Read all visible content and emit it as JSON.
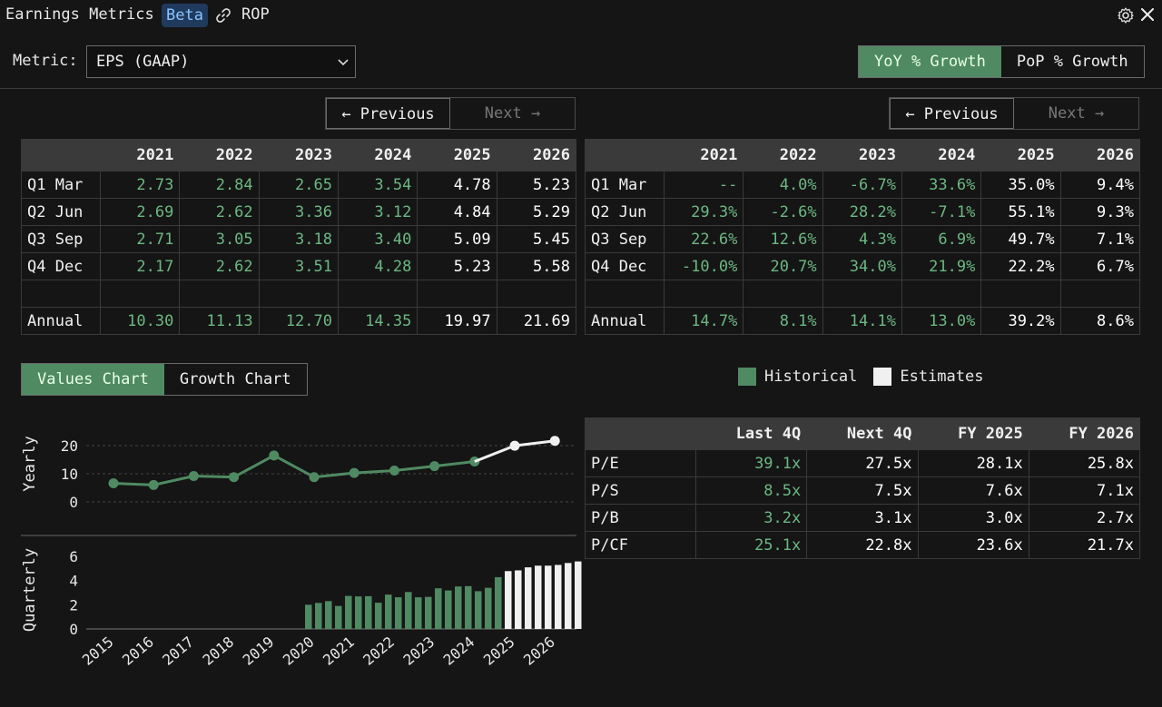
{
  "header": {
    "title": "Earnings Metrics",
    "badge": "Beta",
    "ticker": "ROP"
  },
  "metric": {
    "label": "Metric:",
    "selected": "EPS (GAAP)"
  },
  "growth_toggle": {
    "options": [
      "YoY % Growth",
      "PoP % Growth"
    ],
    "active": "YoY % Growth"
  },
  "pager": {
    "prev": "← Previous",
    "next": "Next →"
  },
  "eps_table": {
    "corner": "",
    "years": [
      "2021",
      "2022",
      "2023",
      "2024",
      "2025",
      "2026"
    ],
    "rows": [
      {
        "label": "Q1 Mar",
        "values": [
          "2.73",
          "2.84",
          "2.65",
          "3.54",
          "4.78",
          "5.23"
        ]
      },
      {
        "label": "Q2 Jun",
        "values": [
          "2.69",
          "2.62",
          "3.36",
          "3.12",
          "4.84",
          "5.29"
        ]
      },
      {
        "label": "Q3 Sep",
        "values": [
          "2.71",
          "3.05",
          "3.18",
          "3.40",
          "5.09",
          "5.45"
        ]
      },
      {
        "label": "Q4 Dec",
        "values": [
          "2.17",
          "2.62",
          "3.51",
          "4.28",
          "5.23",
          "5.58"
        ]
      },
      {
        "label": "",
        "values": [
          "",
          "",
          "",
          "",
          "",
          ""
        ]
      },
      {
        "label": "Annual",
        "values": [
          "10.30",
          "11.13",
          "12.70",
          "14.35",
          "19.97",
          "21.69"
        ]
      }
    ]
  },
  "growth_table": {
    "years": [
      "2021",
      "2022",
      "2023",
      "2024",
      "2025",
      "2026"
    ],
    "rows": [
      {
        "label": "Q1 Mar",
        "values": [
          "--",
          "4.0%",
          "-6.7%",
          "33.6%",
          "35.0%",
          "9.4%"
        ]
      },
      {
        "label": "Q2 Jun",
        "values": [
          "29.3%",
          "-2.6%",
          "28.2%",
          "-7.1%",
          "55.1%",
          "9.3%"
        ]
      },
      {
        "label": "Q3 Sep",
        "values": [
          "22.6%",
          "12.6%",
          "4.3%",
          "6.9%",
          "49.7%",
          "7.1%"
        ]
      },
      {
        "label": "Q4 Dec",
        "values": [
          "-10.0%",
          "20.7%",
          "34.0%",
          "21.9%",
          "22.2%",
          "6.7%"
        ]
      },
      {
        "label": "",
        "values": [
          "",
          "",
          "",
          "",
          "",
          ""
        ]
      },
      {
        "label": "Annual",
        "values": [
          "14.7%",
          "8.1%",
          "14.1%",
          "13.0%",
          "39.2%",
          "8.6%"
        ]
      }
    ]
  },
  "historical_columns": 4,
  "chart_toggle": {
    "options": [
      "Values Chart",
      "Growth Chart"
    ],
    "active": "Values Chart"
  },
  "legend": {
    "historical": "Historical",
    "estimates": "Estimates"
  },
  "valuation_table": {
    "headers": [
      "",
      "Last 4Q",
      "Next 4Q",
      "FY 2025",
      "FY 2026"
    ],
    "rows": [
      {
        "label": "P/E",
        "values": [
          "39.1x",
          "27.5x",
          "28.1x",
          "25.8x"
        ]
      },
      {
        "label": "P/S",
        "values": [
          "8.5x",
          "7.5x",
          "7.6x",
          "7.1x"
        ]
      },
      {
        "label": "P/B",
        "values": [
          "3.2x",
          "3.1x",
          "3.0x",
          "2.7x"
        ]
      },
      {
        "label": "P/CF",
        "values": [
          "25.1x",
          "22.8x",
          "23.6x",
          "21.7x"
        ]
      }
    ]
  },
  "colors": {
    "historical": "#4f8a62",
    "historical_text": "#6bb882",
    "estimates": "#f0f0f0",
    "background": "#151515",
    "active_toggle": "#4f8a62"
  },
  "chart_data": [
    {
      "type": "line",
      "ylabel": "Yearly",
      "x": [
        "2015",
        "2016",
        "2017",
        "2018",
        "2019",
        "2020",
        "2021",
        "2022",
        "2023",
        "2024",
        "2025",
        "2026"
      ],
      "series": [
        {
          "name": "Historical",
          "values": [
            6.6,
            6.0,
            9.2,
            8.8,
            16.5,
            8.8,
            10.3,
            11.13,
            12.7,
            14.35,
            null,
            null
          ]
        },
        {
          "name": "Estimates",
          "values": [
            null,
            null,
            null,
            null,
            null,
            null,
            null,
            null,
            null,
            14.35,
            19.97,
            21.69
          ]
        }
      ],
      "yticks": [
        "20",
        "10",
        "0"
      ],
      "ylim": [
        0,
        25
      ],
      "grid": "dashed"
    },
    {
      "type": "bar",
      "ylabel": "Quarterly",
      "x_ticks": [
        "2015",
        "2016",
        "2017",
        "2018",
        "2019",
        "2020",
        "2021",
        "2022",
        "2023",
        "2024",
        "2025",
        "2026"
      ],
      "series": [
        {
          "name": "Historical",
          "values": [
            2.0,
            2.15,
            2.3,
            1.9,
            2.73,
            2.69,
            2.71,
            2.17,
            2.84,
            2.62,
            3.05,
            2.62,
            2.65,
            3.36,
            3.18,
            3.51,
            3.54,
            3.12,
            3.4,
            4.28
          ]
        },
        {
          "name": "Estimates",
          "values": [
            4.78,
            4.84,
            5.09,
            5.23,
            5.23,
            5.29,
            5.45,
            5.58
          ]
        }
      ],
      "bars_start_year": "2020",
      "yticks": [
        "6",
        "4",
        "2",
        "0"
      ],
      "ylim": [
        0,
        6.5
      ]
    }
  ]
}
